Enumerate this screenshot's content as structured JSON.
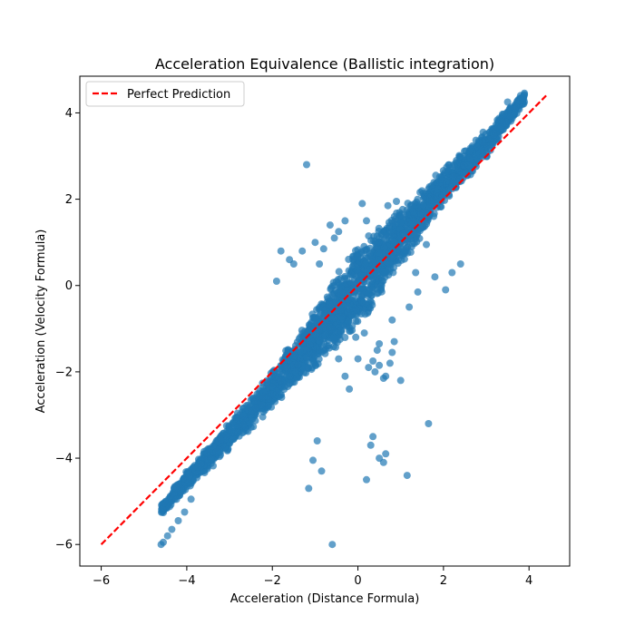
{
  "chart_data": {
    "type": "scatter",
    "title": "Acceleration Equivalence (Ballistic integration)",
    "xlabel": "Acceleration (Distance Formula)",
    "ylabel": "Acceleration (Velocity Formula)",
    "xlim": [
      -6.5,
      4.95
    ],
    "ylim": [
      -6.5,
      4.85
    ],
    "xticks": [
      -6,
      -4,
      -2,
      0,
      2,
      4
    ],
    "yticks": [
      -6,
      -4,
      -2,
      0,
      2,
      4
    ],
    "xtick_labels": [
      "−6",
      "−4",
      "−2",
      "0",
      "2",
      "4"
    ],
    "ytick_labels": [
      "−6",
      "−4",
      "−2",
      "0",
      "2",
      "4"
    ],
    "grid": false,
    "legend": {
      "placement": "top-left",
      "entries": [
        "Perfect Prediction"
      ]
    },
    "colors": {
      "points": "#1f77b4",
      "reference_line": "#ff0000"
    },
    "series": [
      {
        "kind": "reference_line",
        "name": "Perfect Prediction",
        "x": [
          -6.0,
          4.4
        ],
        "y": [
          -6.0,
          4.4
        ]
      },
      {
        "kind": "points",
        "band": {
          "description_of_dense_cloud": "dense diagonal cloud",
          "x": [
            -4.6,
            -4.0,
            -3.0,
            -2.0,
            -1.0,
            0.0,
            1.0,
            2.0,
            3.0,
            3.9
          ],
          "y_center": [
            -5.2,
            -4.5,
            -3.5,
            -2.4,
            -1.2,
            0.0,
            1.1,
            2.3,
            3.3,
            4.35
          ],
          "half_width": [
            0.15,
            0.25,
            0.35,
            0.45,
            0.75,
            1.0,
            0.75,
            0.45,
            0.35,
            0.15
          ]
        },
        "x": [
          -4.6,
          -4.55,
          -4.45,
          -4.35,
          -4.2,
          -4.05,
          -3.9,
          -1.2,
          -1.15,
          -0.6,
          0.2,
          0.3,
          0.35,
          0.5,
          0.6,
          0.65,
          1.15,
          1.65,
          -0.95,
          -1.05,
          -0.85,
          -1.0,
          -0.65,
          -0.45,
          -0.55,
          -0.9,
          -1.5,
          -1.8,
          -1.9,
          -1.6,
          -1.3,
          -0.8,
          -0.3,
          0.1,
          0.2,
          0.7,
          0.9,
          1.3,
          1.5,
          1.6,
          1.8,
          2.05,
          1.4,
          1.35,
          1.2,
          0.8,
          0.85,
          0.5,
          0.45,
          0.0,
          0.15,
          -0.05,
          -0.45,
          -0.2,
          0.65,
          0.75,
          1.0,
          -0.8,
          -1.0,
          2.2,
          2.4,
          3.5,
          3.8,
          3.85,
          0.25,
          0.35,
          0.4,
          0.5,
          0.6,
          0.8,
          -0.3
        ],
        "y": [
          -6.0,
          -5.95,
          -5.8,
          -5.65,
          -5.45,
          -5.25,
          -4.95,
          2.8,
          -4.7,
          -6.0,
          -4.5,
          -3.7,
          -3.5,
          -4.0,
          -4.1,
          -3.9,
          -4.4,
          -3.2,
          -3.6,
          -4.05,
          -4.3,
          1.0,
          1.4,
          1.25,
          1.1,
          0.5,
          0.5,
          0.8,
          0.1,
          0.6,
          0.8,
          0.85,
          1.5,
          1.9,
          1.5,
          1.85,
          1.95,
          1.7,
          1.4,
          0.95,
          0.2,
          -0.1,
          -0.15,
          0.3,
          -0.5,
          -0.8,
          -1.3,
          -1.35,
          -1.5,
          -1.7,
          -1.1,
          -1.2,
          -1.7,
          -2.4,
          -2.1,
          -1.8,
          -2.2,
          -0.5,
          -1.0,
          0.3,
          0.5,
          4.25,
          4.4,
          4.35,
          -1.9,
          -1.75,
          -2.0,
          -1.85,
          -2.15,
          -1.55,
          -2.1
        ]
      }
    ]
  }
}
